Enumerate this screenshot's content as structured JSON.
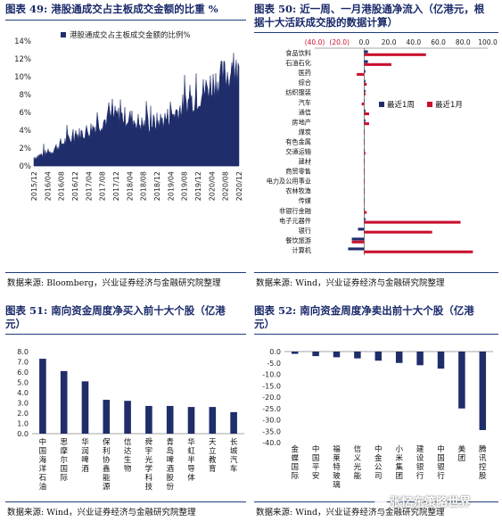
{
  "panels": {
    "p49": {
      "title": "图表 49: 港股通成交占主板成交金额的比重 %",
      "source": "数据来源: Bloomberg，兴业证券经济与金融研究院整理"
    },
    "p50": {
      "title_line1": "图表 50: 近一周、一月港股通净流入（亿港元，根",
      "title_line2": "据十大活跃成交股的数据计算）",
      "source": "数据来源: Wind，兴业证券经济与金融研究院整理"
    },
    "p51": {
      "title_line1": "图表 51: 南向资金周度净买入前十大个股（亿港",
      "title_line2": "元）",
      "source": "数据来源: Wind，兴业证券经济与金融研究院整理"
    },
    "p52": {
      "title_line1": "图表 52: 南向资金周度净卖出前十大个股（亿港",
      "title_line2": "元）",
      "source": "数据来源: Wind，兴业证券经济与金融研究院整理"
    }
  },
  "watermark": "张忆东策略世界",
  "colors": {
    "navy": "#1f2d6b",
    "red": "#c8102e"
  },
  "chart_data": [
    {
      "id": "c49",
      "type": "area",
      "legend": "港股通成交占主板成交金额的比例%",
      "x_ticks": [
        "2015/12",
        "2016/04",
        "2016/08",
        "2016/12",
        "2017/04",
        "2017/08",
        "2017/12",
        "2018/04",
        "2018/08",
        "2018/12",
        "2019/04",
        "2019/08",
        "2019/12",
        "2020/04",
        "2020/08",
        "2020/12"
      ],
      "y_ticks": [
        "0%",
        "2%",
        "4%",
        "6%",
        "8%",
        "10%",
        "12%",
        "14%"
      ],
      "ylim": [
        0,
        14
      ],
      "trend_x": [
        "2015/12",
        "2016/04",
        "2016/08",
        "2016/12",
        "2017/04",
        "2017/08",
        "2017/12",
        "2018/04",
        "2018/08",
        "2018/12",
        "2019/04",
        "2019/08",
        "2019/12",
        "2020/04",
        "2020/08",
        "2020/12"
      ],
      "trend_y": [
        1.0,
        1.4,
        2.5,
        3.3,
        4.0,
        5.0,
        5.6,
        5.4,
        4.6,
        4.9,
        5.6,
        6.8,
        7.8,
        9.2,
        10.2,
        10.5
      ]
    },
    {
      "id": "c50",
      "type": "bar",
      "orientation": "horizontal",
      "x_ticks": [
        "(40.0)",
        "(20.0)",
        "0.0",
        "20.0",
        "40.0",
        "60.0",
        "80.0",
        "100.0"
      ],
      "xlim": [
        -40,
        100
      ],
      "categories": [
        "食品饮料",
        "石油石化",
        "医药",
        "综合",
        "纺织服装",
        "汽车",
        "通信",
        "房地产",
        "煤炭",
        "有色金属",
        "交通运输",
        "建材",
        "商贸零售",
        "电力及公用事业",
        "农林牧渔",
        "传媒",
        "非银行金融",
        "电子元器件",
        "银行",
        "餐饮旅游",
        "计算机"
      ],
      "series": [
        {
          "name": "最近1周",
          "color": "#1f2d6b",
          "values": [
            3,
            3,
            1,
            1,
            1,
            0,
            1,
            1,
            0,
            0,
            0,
            0,
            0,
            0,
            0,
            0,
            0,
            1,
            -5,
            -10,
            -13
          ]
        },
        {
          "name": "最近1月",
          "color": "#c8102e",
          "values": [
            50,
            22,
            -6,
            2,
            1,
            -2,
            4,
            4,
            0,
            0,
            1,
            0,
            0,
            0,
            0,
            0,
            2,
            78,
            55,
            -10,
            88
          ]
        }
      ]
    },
    {
      "id": "c51",
      "type": "bar",
      "categories": [
        "中国海洋石油",
        "思摩尔国际",
        "华润啤酒",
        "保利协鑫能源",
        "信达生物",
        "舜宇光学科技",
        "青岛啤酒股份",
        "华虹半导体",
        "天立教育",
        "长城汽车"
      ],
      "values": [
        7.3,
        6.1,
        5.1,
        3.3,
        3.2,
        2.7,
        2.7,
        2.6,
        2.6,
        2.1
      ],
      "y_ticks": [
        "0.0",
        "1.0",
        "2.0",
        "3.0",
        "4.0",
        "5.0",
        "6.0",
        "7.0",
        "8.0"
      ],
      "ylim": [
        0,
        8
      ]
    },
    {
      "id": "c52",
      "type": "bar",
      "categories": [
        "金蝶国际",
        "中国平安",
        "福莱特玻璃",
        "信义光能",
        "中金公司",
        "小米集团",
        "建设银行",
        "中国银行",
        "美团",
        "腾讯控股"
      ],
      "values": [
        -1.0,
        -2.0,
        -2.5,
        -3.0,
        -4.0,
        -5.0,
        -6.0,
        -7.5,
        -25.0,
        -34.5
      ],
      "y_ticks": [
        "0.0",
        "-5.0",
        "-10.0",
        "-15.0",
        "-20.0",
        "-25.0",
        "-30.0",
        "-35.0",
        "-40.0"
      ],
      "ylim": [
        -40,
        0
      ]
    }
  ]
}
